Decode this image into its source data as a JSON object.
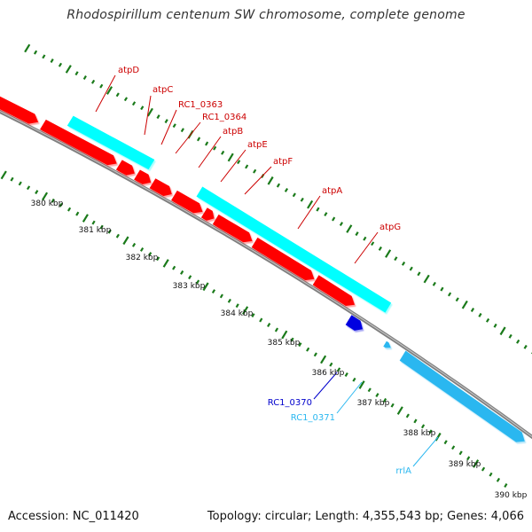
{
  "title": "Rhodospirillum centenum SW chromosome, complete genome",
  "footer": {
    "accession": "Accession: NC_011420",
    "topology": "Topology: circular; Length: 4,355,543 bp; Genes: 4,066"
  },
  "colors": {
    "forward_gene": "#ff0000",
    "reverse_gene": "#00ffff",
    "rrna": "#2ab7f0",
    "other_gene": "#0000e0",
    "backbone": "#808080",
    "tick": "#1a7a1a",
    "label_red": "#cc0000",
    "label_blue": "#0000cc",
    "label_cyan": "#2ab7f0"
  },
  "scale_ticks": [
    "380 kbp",
    "381 kbp",
    "382 kbp",
    "383 kbp",
    "384 kbp",
    "385 kbp",
    "386 kbp",
    "387 kbp",
    "388 kbp",
    "389 kbp",
    "390 kbp"
  ],
  "gene_labels": [
    {
      "name": "atpD",
      "color": "label_red"
    },
    {
      "name": "atpC",
      "color": "label_red"
    },
    {
      "name": "RC1_0363",
      "color": "label_red"
    },
    {
      "name": "RC1_0364",
      "color": "label_red"
    },
    {
      "name": "atpB",
      "color": "label_red"
    },
    {
      "name": "atpE",
      "color": "label_red"
    },
    {
      "name": "atpF",
      "color": "label_red"
    },
    {
      "name": "atpA",
      "color": "label_red"
    },
    {
      "name": "atpG",
      "color": "label_red"
    },
    {
      "name": "RC1_0370",
      "color": "label_blue"
    },
    {
      "name": "RC1_0371",
      "color": "label_cyan"
    },
    {
      "name": "rrlA",
      "color": "label_cyan"
    }
  ]
}
